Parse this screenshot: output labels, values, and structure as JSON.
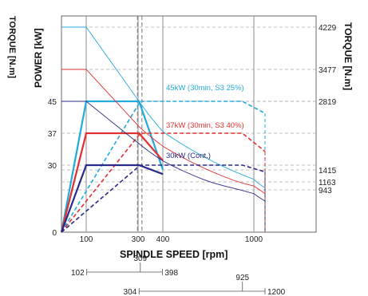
{
  "chart_data": {
    "type": "line",
    "title": "",
    "xlabel": "SPINDLE SPEED [rpm]",
    "ylabel_left": "POWER [kW]",
    "ylabel_right": "TORQUE [N.m]",
    "edge_label_left": "TORQUE [N.m]",
    "x_ticks": [
      "100",
      "300",
      "400",
      "1000"
    ],
    "x_tick_values": [
      100,
      300,
      400,
      1000
    ],
    "y_left_ticks": [
      "0",
      "30",
      "37",
      "45"
    ],
    "y_left_tick_values": [
      0,
      30,
      37,
      45
    ],
    "y_right_ticks": [
      "4229",
      "3477",
      "2819",
      "1415",
      "1163",
      "943"
    ],
    "y_right_tick_values": [
      4229,
      3477,
      2819,
      1415,
      1163,
      943
    ],
    "grid": true,
    "legend_placement": "center-right",
    "series": [
      {
        "name": "45kW (30min, S3 25%)",
        "color": "#22aadd",
        "power_kw": [
          [
            0,
            0
          ],
          [
            100,
            45
          ],
          [
            304,
            45
          ],
          [
            400,
            28
          ]
        ],
        "power_high_range": [
          [
            0,
            0
          ],
          [
            309,
            45
          ],
          [
            925,
            45
          ],
          [
            1200,
            42
          ]
        ],
        "torque_nm": [
          [
            0,
            4229
          ],
          [
            100,
            4229
          ],
          [
            304,
            2819
          ],
          [
            400,
            2200
          ],
          [
            1200,
            1000
          ]
        ]
      },
      {
        "name": "37kW (30min, S3 40%)",
        "color": "#e03030",
        "power_kw": [
          [
            0,
            0
          ],
          [
            100,
            37
          ],
          [
            304,
            37
          ],
          [
            400,
            31
          ]
        ],
        "power_high_range": [
          [
            0,
            0
          ],
          [
            309,
            37
          ],
          [
            925,
            37
          ],
          [
            1200,
            33
          ]
        ],
        "torque_nm": [
          [
            0,
            3477
          ],
          [
            100,
            3477
          ],
          [
            304,
            2300
          ],
          [
            400,
            1900
          ],
          [
            1200,
            860
          ]
        ]
      },
      {
        "name": "30kW (Cont.)",
        "color": "#2a2a8a",
        "power_kw": [
          [
            0,
            0
          ],
          [
            100,
            30
          ],
          [
            304,
            30
          ],
          [
            400,
            26
          ]
        ],
        "power_high_range": [
          [
            0,
            0
          ],
          [
            309,
            30
          ],
          [
            925,
            30
          ],
          [
            1200,
            27
          ]
        ],
        "torque_nm": [
          [
            0,
            2819
          ],
          [
            100,
            2819
          ],
          [
            304,
            1950
          ],
          [
            400,
            1600
          ],
          [
            1200,
            700
          ]
        ]
      }
    ],
    "speed_ranges": [
      {
        "from_label": "102",
        "mid_label": "309",
        "to_label": "398",
        "from": 102,
        "mid": 309,
        "to": 398
      },
      {
        "from_label": "304",
        "mid_label": "925",
        "to_label": "1200",
        "from": 304,
        "mid": 925,
        "to": 1200
      }
    ]
  }
}
